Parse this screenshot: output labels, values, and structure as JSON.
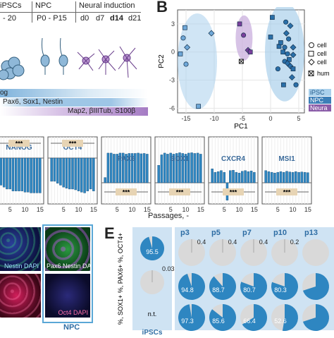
{
  "panel_a": {
    "headers": [
      "iPSCs",
      "NPC",
      "Neural induction"
    ],
    "sub_ipsc": "- 20",
    "sub_npc": "P0 - P15",
    "days": [
      "d0",
      "d7",
      "d14",
      "d21"
    ],
    "marker_bars": [
      {
        "text": "og",
        "color": "#7fb3dc"
      },
      {
        "text": "Pax6, Sox1, Nestin",
        "color": "#9ec6e6"
      },
      {
        "text": "Map2, βIIITub, S100β",
        "color": "#b893cf"
      }
    ]
  },
  "panel_b": {
    "letter": "B",
    "xlabel": "PC1",
    "ylabel": "PC2",
    "xticks": [
      "-15",
      "-10",
      "-5",
      "0",
      "5"
    ],
    "yticks": [
      "3",
      "0",
      "-3",
      "-6"
    ],
    "legend_shapes": [
      "cell",
      "cell",
      "cell"
    ],
    "legend_extra": "hum",
    "legend_groups": [
      {
        "label": "iPSC",
        "color": "#a9d0ec"
      },
      {
        "label": "NPC",
        "color": "#3c7fb8"
      },
      {
        "label": "Neura",
        "color": "#8a5ca8"
      }
    ]
  },
  "chart_data": [
    {
      "type": "scatter",
      "xlabel": "PC1",
      "ylabel": "PC2",
      "xlim": [
        -16.5,
        6
      ],
      "ylim": [
        -6.5,
        4.5
      ],
      "series": [
        {
          "name": "iPSC",
          "points": [
            [
              -15.2,
              2.6
            ],
            [
              -15.5,
              1.5
            ],
            [
              -14.8,
              0.5
            ],
            [
              -16.0,
              -0.2
            ],
            [
              -15.0,
              -1.3
            ],
            [
              -10.5,
              2.0
            ],
            [
              -12.8,
              -5.8
            ]
          ]
        },
        {
          "name": "Neural",
          "points": [
            [
              -5.5,
              3.0
            ],
            [
              -4.8,
              1.8
            ],
            [
              -4.0,
              0.2
            ],
            [
              -3.6,
              0.0
            ]
          ]
        },
        {
          "name": "NPC",
          "points": [
            [
              0.3,
              3.7
            ],
            [
              2.7,
              3.2
            ],
            [
              3.5,
              2.8
            ],
            [
              0.0,
              1.6
            ],
            [
              3.2,
              1.4
            ],
            [
              2.8,
              2.0
            ],
            [
              1.5,
              0.6
            ],
            [
              2.5,
              0.5
            ],
            [
              4.0,
              0.5
            ],
            [
              2.2,
              0.0
            ],
            [
              3.0,
              -0.2
            ],
            [
              4.0,
              -0.3
            ],
            [
              3.3,
              -0.8
            ],
            [
              2.5,
              -1.0
            ],
            [
              3.5,
              -1.5
            ],
            [
              4.0,
              -1.8
            ],
            [
              1.3,
              -1.8
            ],
            [
              3.8,
              -2.7
            ],
            [
              2.3,
              -3.5
            ],
            [
              4.5,
              -3.5
            ],
            [
              3.0,
              -1.2
            ],
            [
              1.8,
              1.0
            ]
          ]
        }
      ]
    },
    {
      "type": "bar",
      "title": "Passages, -",
      "xticks": [
        "5",
        "10",
        "15"
      ],
      "subplots": [
        {
          "name": "NANOG",
          "values": [
            -0.6,
            -0.7,
            -0.75,
            -0.8,
            -0.8,
            -0.85,
            -0.85,
            -0.85,
            -0.85,
            -0.88,
            -0.88,
            -0.9,
            -0.9,
            -0.9,
            -0.9
          ],
          "sig": "***"
        },
        {
          "name": "OCT4",
          "values": [
            -0.6,
            -0.6,
            -0.65,
            -0.7,
            -0.75,
            -0.78,
            -0.8,
            -0.8,
            -0.82,
            -0.85,
            -0.88,
            -0.9,
            -0.85,
            -0.8,
            -0.85
          ],
          "sig": "***"
        },
        {
          "name": "PAX6",
          "values": [
            0.15,
            0.85,
            0.85,
            0.82,
            0.82,
            0.85,
            0.85,
            0.82,
            0.84,
            0.84,
            0.84,
            0.85,
            0.83,
            0.84,
            0.82
          ],
          "sig": "***"
        },
        {
          "name": "SOX1",
          "values": [
            0.5,
            0.8,
            0.85,
            0.82,
            0.85,
            0.82,
            0.84,
            0.86,
            0.84,
            0.82,
            0.85,
            0.86,
            0.84,
            0.85,
            0.82
          ],
          "sig": "***"
        },
        {
          "name": "CXCR4",
          "values": [
            0.4,
            0.3,
            0.32,
            0.35,
            0.3,
            -0.5,
            0.35,
            0.36,
            0.3,
            0.28,
            0.33,
            0.35,
            0.32,
            0.34,
            0.3
          ],
          "sig": "***"
        },
        {
          "name": "MSI1",
          "values": [
            0.35,
            0.32,
            0.3,
            0.28,
            0.3,
            0.32,
            0.3,
            0.33,
            0.31,
            0.3,
            0.32,
            0.3,
            0.31,
            0.3,
            0.29
          ],
          "sig": "***"
        }
      ]
    },
    {
      "type": "pie",
      "ylabel": "%, SOX1+ %, PAX6+ %, OCT4+",
      "group_label": "iPSCs",
      "columns": [
        "p3",
        "p5",
        "p7",
        "p10",
        "p13"
      ],
      "ipsc_values": [
        95.5,
        0.03,
        null
      ],
      "ipsc_na": "n.t.",
      "rows": [
        [
          0.4,
          0.4,
          0.4,
          0.2,
          null
        ],
        [
          94.8,
          88.7,
          80.7,
          80.3,
          null
        ],
        [
          97.3,
          85.6,
          66.4,
          52.6,
          null
        ]
      ]
    }
  ],
  "panel_c": {
    "xlabel": "Passages, -",
    "xticks": [
      "5",
      "10",
      "15"
    ]
  },
  "panel_d": {
    "images": [
      {
        "caption": "Nestin DAPI",
        "tone": "blue-green"
      },
      {
        "caption": "Pax6 Nestin DAPI",
        "tone": "green"
      },
      {
        "caption": "",
        "tone": "red"
      },
      {
        "caption": "Oct4 DAPI",
        "tone": "dark"
      }
    ],
    "footer": "NPC"
  },
  "panel_e": {
    "letter": "E",
    "ipsc_label": "iPSCs"
  },
  "colors": {
    "npc": "#2e86c1",
    "ipsc_light": "#a9d0ec",
    "neural": "#8a5ca8",
    "bar": "#2e86c1",
    "sig_box": "#e7d4b4",
    "pie_bg": "#cfe3f3"
  }
}
